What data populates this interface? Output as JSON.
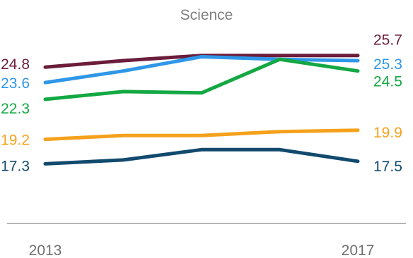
{
  "chart_data": {
    "type": "line",
    "title": "Science",
    "xlabel": "",
    "ylabel": "",
    "x": [
      2013,
      2014,
      2015,
      2016,
      2017
    ],
    "x_tick_labels": [
      "2013",
      "2017"
    ],
    "ylim": [
      10,
      30
    ],
    "grid": false,
    "legend": "none",
    "series": [
      {
        "values": [
          24.8,
          25.3,
          25.7,
          25.7,
          25.7
        ],
        "color": "#6b1d3b",
        "first_label": "24.8",
        "last_label": "25.7"
      },
      {
        "values": [
          23.6,
          24.5,
          25.6,
          25.4,
          25.3
        ],
        "color": "#2f97e8",
        "first_label": "23.6",
        "last_label": "25.3"
      },
      {
        "values": [
          22.3,
          22.9,
          22.8,
          25.4,
          24.5
        ],
        "color": "#13a843",
        "first_label": "22.3",
        "last_label": "24.5"
      },
      {
        "values": [
          19.2,
          19.5,
          19.5,
          19.8,
          19.9
        ],
        "color": "#f5a11c",
        "first_label": "19.2",
        "last_label": "19.9"
      },
      {
        "values": [
          17.3,
          17.6,
          18.4,
          18.4,
          17.5
        ],
        "color": "#124a6e",
        "first_label": "17.3",
        "last_label": "17.5"
      }
    ]
  }
}
